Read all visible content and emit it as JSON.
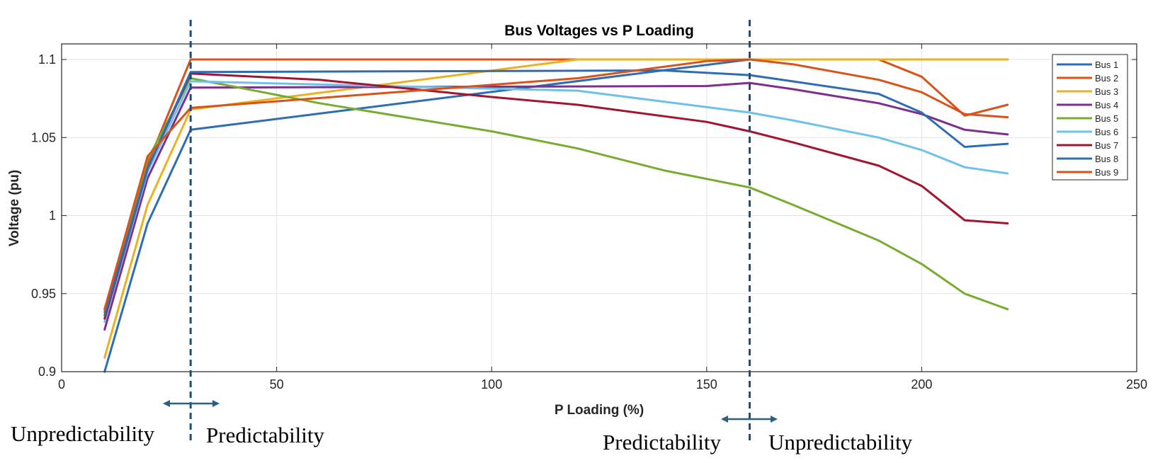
{
  "chart_data": {
    "type": "line",
    "title": "Bus Voltages vs P Loading",
    "xlabel": "P Loading (%)",
    "ylabel": "Voltage (pu)",
    "xlim": [
      0,
      250
    ],
    "ylim": [
      0.9,
      1.11
    ],
    "xticks": [
      0,
      50,
      100,
      150,
      200,
      250
    ],
    "yticks": [
      0.9,
      0.95,
      1,
      1.05,
      1.1
    ],
    "xtick_labels": [
      "0",
      "50",
      "100",
      "150",
      "200",
      "250"
    ],
    "ytick_labels": [
      "0.9",
      "0.95",
      "1",
      "1.05",
      "1.1"
    ],
    "grid": true,
    "legend_position": "top-right",
    "series": [
      {
        "name": "Bus 1",
        "color": "#2E6DB4",
        "x": [
          10,
          20,
          30,
          160,
          190,
          200,
          210,
          220
        ],
        "y": [
          0.9,
          0.995,
          1.055,
          1.1,
          1.1,
          1.1,
          1.1,
          1.1
        ]
      },
      {
        "name": "Bus 2",
        "color": "#D95319",
        "x": [
          10,
          20,
          30,
          160,
          190,
          200,
          210,
          220
        ],
        "y": [
          0.938,
          1.033,
          1.1,
          1.1,
          1.1,
          1.089,
          1.064,
          1.071
        ]
      },
      {
        "name": "Bus 3",
        "color": "#EDB120",
        "x": [
          10,
          20,
          30,
          120,
          160,
          190,
          200,
          210,
          220
        ],
        "y": [
          0.909,
          1.007,
          1.068,
          1.1,
          1.1,
          1.1,
          1.1,
          1.1,
          1.1
        ]
      },
      {
        "name": "Bus 4",
        "color": "#7E2F8E",
        "x": [
          10,
          20,
          30,
          150,
          160,
          170,
          190,
          200,
          210,
          220
        ],
        "y": [
          0.927,
          1.024,
          1.082,
          1.083,
          1.085,
          1.081,
          1.072,
          1.065,
          1.055,
          1.052
        ]
      },
      {
        "name": "Bus 5",
        "color": "#77AC30",
        "x": [
          10,
          20,
          30,
          60,
          100,
          120,
          140,
          160,
          170,
          190,
          200,
          210,
          220
        ],
        "y": [
          0.94,
          1.036,
          1.088,
          1.072,
          1.054,
          1.043,
          1.029,
          1.018,
          1.007,
          0.984,
          0.969,
          0.95,
          0.94
        ]
      },
      {
        "name": "Bus 6",
        "color": "#6EC1EA",
        "x": [
          10,
          20,
          30,
          120,
          160,
          170,
          190,
          200,
          210,
          220
        ],
        "y": [
          0.932,
          1.028,
          1.086,
          1.08,
          1.066,
          1.061,
          1.05,
          1.042,
          1.031,
          1.027
        ]
      },
      {
        "name": "Bus 7",
        "color": "#A2142F",
        "x": [
          10,
          20,
          30,
          60,
          100,
          120,
          150,
          160,
          170,
          190,
          200,
          210,
          220
        ],
        "y": [
          0.934,
          1.03,
          1.091,
          1.087,
          1.076,
          1.071,
          1.06,
          1.054,
          1.047,
          1.032,
          1.019,
          0.997,
          0.995
        ]
      },
      {
        "name": "Bus 8",
        "color": "#2E6DB4",
        "x": [
          10,
          20,
          30,
          140,
          160,
          170,
          190,
          200,
          210,
          220
        ],
        "y": [
          0.936,
          1.03,
          1.092,
          1.093,
          1.09,
          1.086,
          1.078,
          1.066,
          1.044,
          1.046
        ]
      },
      {
        "name": "Bus 9",
        "color": "#D95319",
        "x": [
          10,
          20,
          30,
          120,
          150,
          160,
          170,
          190,
          200,
          210,
          220
        ],
        "y": [
          0.94,
          1.038,
          1.069,
          1.088,
          1.099,
          1.1,
          1.097,
          1.087,
          1.079,
          1.065,
          1.063
        ]
      }
    ],
    "vertical_lines": [
      {
        "x": 30,
        "color": "#1F4E79",
        "style": "dashed"
      },
      {
        "x": 160,
        "color": "#1F4E79",
        "style": "dashed"
      }
    ],
    "annotations": [
      {
        "text": "Unpredictability",
        "region": "left of first dashed line"
      },
      {
        "text": "Predictability",
        "region": "right of first dashed line"
      },
      {
        "text": "Predictability",
        "region": "left of second dashed line"
      },
      {
        "text": "Unpredictability",
        "region": "right of second dashed line"
      }
    ]
  }
}
